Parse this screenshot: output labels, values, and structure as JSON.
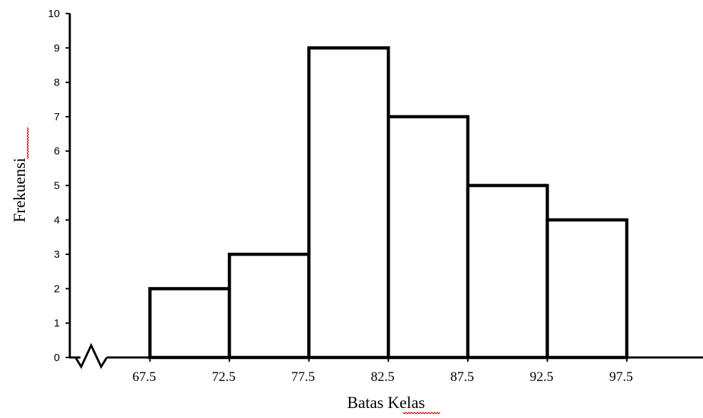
{
  "chart_data": {
    "type": "bar",
    "subtype": "histogram",
    "bins": [
      {
        "from": 67.5,
        "to": 72.5,
        "value": 2
      },
      {
        "from": 72.5,
        "to": 77.5,
        "value": 3
      },
      {
        "from": 77.5,
        "to": 82.5,
        "value": 9
      },
      {
        "from": 82.5,
        "to": 87.5,
        "value": 7
      },
      {
        "from": 87.5,
        "to": 92.5,
        "value": 5
      },
      {
        "from": 92.5,
        "to": 97.5,
        "value": 4
      }
    ],
    "x_ticks": [
      "67.5",
      "72.5",
      "77.5",
      "82.5",
      "87.5",
      "92.5",
      "97.5"
    ],
    "y_ticks": [
      "0",
      "1",
      "2",
      "3",
      "4",
      "5",
      "6",
      "7",
      "8",
      "9",
      "10"
    ],
    "xlabel": "Batas Kelas",
    "ylabel": "Frekuensi",
    "ylim": [
      0,
      10
    ],
    "x_axis_break": true,
    "grid": false,
    "legend": "none",
    "bar_fill": "#ffffff",
    "bar_stroke": "#000000",
    "spellcheck_underline_color": "#c00000"
  }
}
